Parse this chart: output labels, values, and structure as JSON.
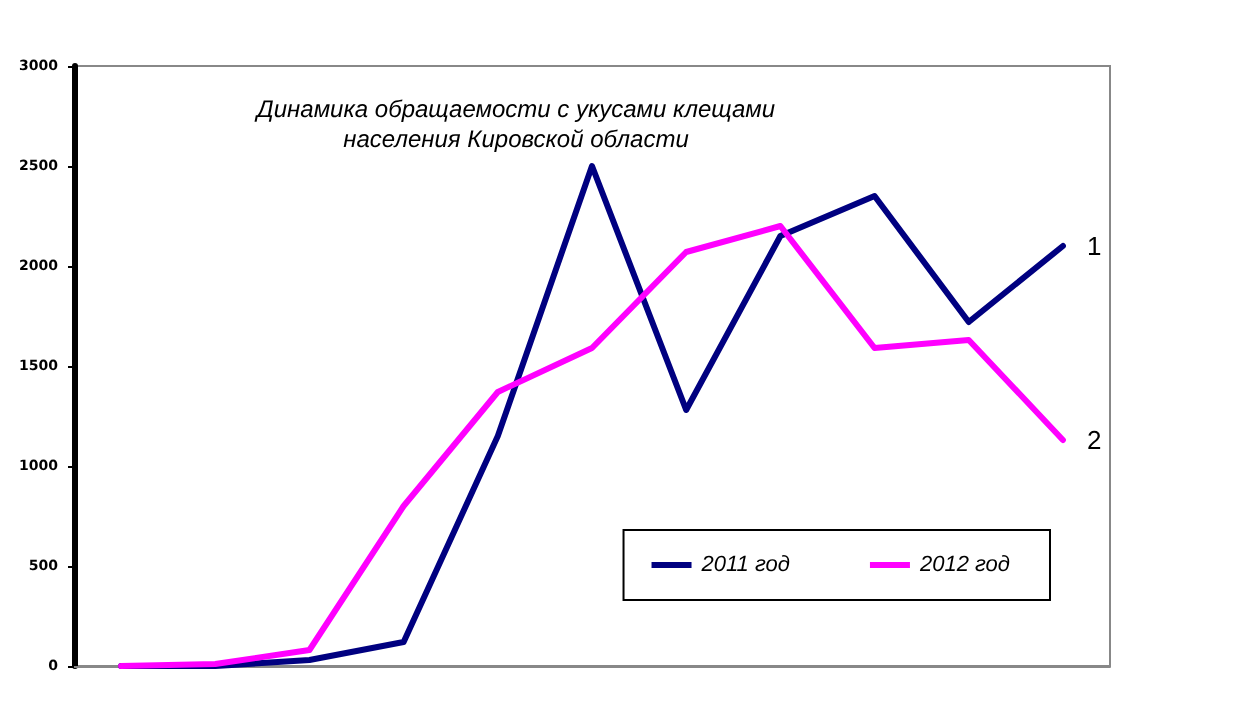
{
  "chart_data": {
    "type": "line",
    "title": "Динамика обращаемости с укусами клещами\nнаселения Кировской области",
    "categories": [
      null,
      null,
      null,
      null,
      null,
      null,
      null,
      null,
      null,
      null,
      null
    ],
    "series": [
      {
        "name": "2011 год",
        "color": "#000080",
        "values": [
          0,
          0,
          30,
          120,
          1150,
          2500,
          1280,
          2150,
          2350,
          1720,
          2100
        ]
      },
      {
        "name": "2012 год",
        "color": "#ff00ff",
        "values": [
          0,
          10,
          80,
          800,
          1370,
          1590,
          2070,
          2200,
          1590,
          1630,
          1130
        ]
      }
    ],
    "ylim": [
      0,
      3000
    ],
    "yticks": [
      0,
      500,
      1000,
      1500,
      2000,
      2500,
      3000
    ],
    "annotations": [
      "1",
      "2"
    ],
    "grid": false,
    "legend": "bottom right",
    "marker": "none",
    "line_style": "solid"
  }
}
